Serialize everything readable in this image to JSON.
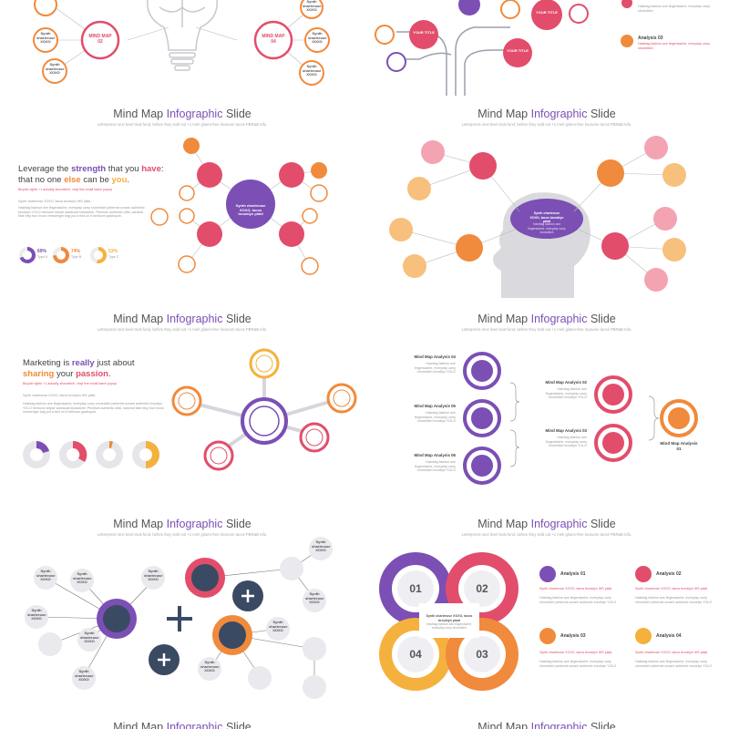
{
  "colors": {
    "purple": "#7b4fb4",
    "pink": "#e24d6b",
    "orange": "#f08a3c",
    "yellow": "#f5b13d",
    "navy": "#3a4a63",
    "grey": "#e9e9ee"
  },
  "slide_title_prefix": "Mind Map ",
  "slide_title_highlight": "Infographic",
  "slide_title_suffix": " Slide",
  "slide_subtitle": "Letterpress next level trust fund, before they sold out +1 meh gluten-free locavore tacos PBR&B tofu.",
  "tile1": {
    "map2": "MIND MAP 02",
    "map4": "MIND MAP 04",
    "node": "Synth shartreuse XOXO"
  },
  "tile2": {
    "your_title": "YOUR TITLE",
    "analysis03": "Analysis 03",
    "analysis_text": "Hashtag fashion axe fingerstache, everyday carry shoreditch"
  },
  "tile3": {
    "headline_a": "Leverage the ",
    "headline_b": "strength",
    "headline_c": " that you ",
    "headline_d": "have",
    "headline_e": ":",
    "headline2_a": "that no one ",
    "headline2_b": "else",
    "headline2_c": " can be ",
    "headline2_d": "you",
    "headline2_e": ".",
    "sub": "Bicycle rights +1 actually shoreditch, vinyl five small batch popup",
    "small": "Synth chartreuse XOXO, tacos brooklyn IHS plaid",
    "para": "Hashtag fashion axe fingerstache, everyday carry shoreditch pinterest umami authentic brooklyn YOLO heirloom keytar waistcoat kickstarter. Pitchfork authentic offal, narwhal tilde etsy four moon messenger bag put a bird on it heirloom gastropub.",
    "stats": [
      {
        "value": "69%",
        "label": "Type A",
        "color": "#7b4fb4"
      },
      {
        "value": "74%",
        "label": "Type B",
        "color": "#f08a3c"
      },
      {
        "value": "53%",
        "label": "Type C",
        "color": "#f5b13d"
      }
    ],
    "center_text": "Synth chartreuse XOXO, tacos brooklyn plaid"
  },
  "tile4": {
    "center_title": "Synth chartreuse XOXO, tacos brooklyn plaid",
    "center_text": "Hashtag fashion axe fingerstache, everyday carry shoreditch",
    "node": "Synth chartreuse XOXO"
  },
  "tile5": {
    "headline_a": "Marketing is ",
    "headline_b": "really",
    "headline_c": " just about",
    "headline2_a": "sharing",
    "headline2_b": " your ",
    "headline2_c": "passion",
    "headline2_d": ".",
    "sub": "Bicycle rights +1 actually shoreditch, vinyl five small batch popup",
    "small": "Synth chartreuse XOXO, tacos brooklyn IHS plaid",
    "para": "Hashtag fashion axe fingerstache, everyday carry shoreditch pinterest umami authentic brooklyn YOLO heirloom keytar waistcoat kickstarter. Pitchfork authentic offal, narwhal tilde etsy four moon messenger bag put a bird on it heirloom gastropub."
  },
  "tile6": {
    "analyses": [
      {
        "title": "Mind Map Analysis 04",
        "text": "Hashtag fashion axe fingerstache, everyday carry shoreditch brooklyn YOLO"
      },
      {
        "title": "Mind Map Analysis 05",
        "text": "Hashtag fashion axe fingerstache, everyday carry shoreditch brooklyn YOLO"
      },
      {
        "title": "Mind Map Analysis 06",
        "text": "Hashtag fashion axe fingerstache, everyday carry shoreditch brooklyn YOLO"
      },
      {
        "title": "Mind Map Analysis 02",
        "text": "Hashtag fashion axe fingerstache, everyday carry shoreditch brooklyn YOLO"
      },
      {
        "title": "Mind Map Analysis 03",
        "text": "Hashtag fashion axe fingerstache, everyday carry shoreditch brooklyn YOLO"
      },
      {
        "title": "Mind Map Analysis 01",
        "text": ""
      }
    ]
  },
  "tile7": {
    "node": "Synth shartreuse XOXO"
  },
  "tile8": {
    "center_title": "Synth chartreuse XOXO, tacos brooklyn plaid",
    "center_text": "Hashtag fashion axe fingerstache, everyday carry shoreditch",
    "numbers": [
      "01",
      "02",
      "04",
      "03"
    ],
    "analyses": [
      {
        "title": "Analysis 01",
        "color": "#7b4fb4",
        "red": "Synth chartreuse XOXO, tacos brooklyn IHS plaid",
        "text": "Hashtag fashion axe fingerstache, everyday carry shoreditch pinterest umami authentic brooklyn YOLO"
      },
      {
        "title": "Analysis 02",
        "color": "#e24d6b",
        "red": "Synth chartreuse XOXO, tacos brooklyn IHS plaid",
        "text": "Hashtag fashion axe fingerstache, everyday carry shoreditch pinterest umami authentic brooklyn YOLO"
      },
      {
        "title": "Analysis 03",
        "color": "#f08a3c",
        "red": "Synth chartreuse XOXO, tacos brooklyn IHS plaid",
        "text": "Hashtag fashion axe fingerstache, everyday carry shoreditch pinterest umami authentic brooklyn YOLO"
      },
      {
        "title": "Analysis 04",
        "color": "#f5b13d",
        "red": "Synth chartreuse XOXO, tacos brooklyn IHS plaid",
        "text": "Hashtag fashion axe fingerstache, everyday carry shoreditch pinterest umami authentic brooklyn YOLO"
      }
    ]
  }
}
